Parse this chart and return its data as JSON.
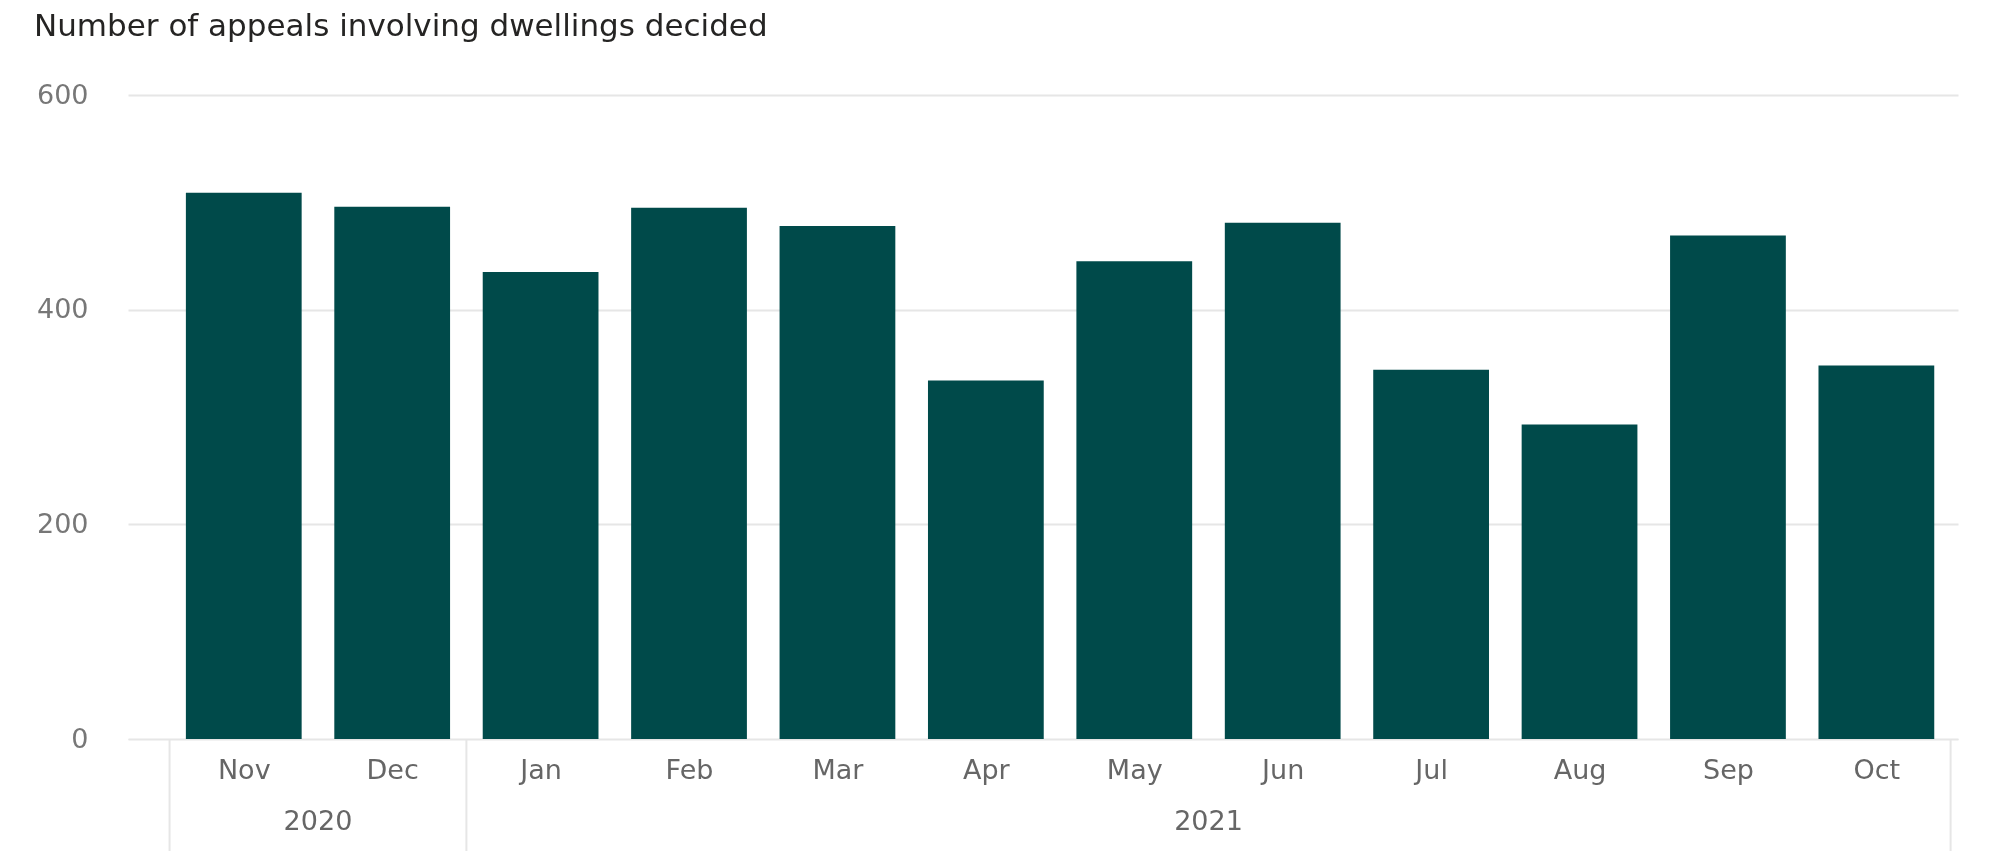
{
  "chart_data": {
    "type": "bar",
    "title": "Number of appeals involving dwellings decided",
    "categories": [
      "Nov",
      "Dec",
      "Jan",
      "Feb",
      "Mar",
      "Apr",
      "May",
      "Jun",
      "Jul",
      "Aug",
      "Sep",
      "Oct"
    ],
    "values": [
      509,
      496,
      435,
      495,
      478,
      334,
      445,
      481,
      344,
      293,
      469,
      348
    ],
    "color": "#004a4a",
    "annotations": [
      "2020",
      "2021"
    ],
    "ylim": [
      0,
      600
    ],
    "yticks": [
      0,
      200,
      400,
      600
    ],
    "grid": "y"
  }
}
